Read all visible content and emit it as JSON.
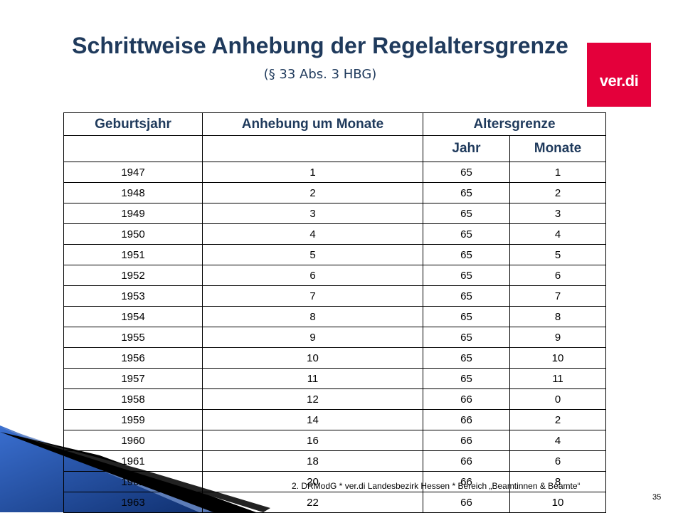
{
  "title": "Schrittweise Anhebung der Regelaltersgrenze",
  "subtitle": "(§ 33 Abs. 3 HBG)",
  "logo_text": "ver.di",
  "colors": {
    "title": "#1f3a5c",
    "logo_bg": "#e4003b",
    "deco_blue": "#1a4a9c"
  },
  "table": {
    "headers": {
      "birth_year": "Geburtsjahr",
      "increase": "Anhebung um Monate",
      "age_limit": "Altersgrenze",
      "year": "Jahr",
      "months": "Monate"
    },
    "rows": [
      [
        "1947",
        "1",
        "65",
        "1"
      ],
      [
        "1948",
        "2",
        "65",
        "2"
      ],
      [
        "1949",
        "3",
        "65",
        "3"
      ],
      [
        "1950",
        "4",
        "65",
        "4"
      ],
      [
        "1951",
        "5",
        "65",
        "5"
      ],
      [
        "1952",
        "6",
        "65",
        "6"
      ],
      [
        "1953",
        "7",
        "65",
        "7"
      ],
      [
        "1954",
        "8",
        "65",
        "8"
      ],
      [
        "1955",
        "9",
        "65",
        "9"
      ],
      [
        "1956",
        "10",
        "65",
        "10"
      ],
      [
        "1957",
        "11",
        "65",
        "11"
      ],
      [
        "1958",
        "12",
        "66",
        "0"
      ],
      [
        "1959",
        "14",
        "66",
        "2"
      ],
      [
        "1960",
        "16",
        "66",
        "4"
      ],
      [
        "1961",
        "18",
        "66",
        "6"
      ],
      [
        "1962",
        "20",
        "66",
        "8"
      ],
      [
        "1963",
        "22",
        "66",
        "10"
      ]
    ]
  },
  "footer": "2. DRModG  *  ver.di Landesbezirk Hessen *   Bereich „Beamtinnen & Beamte“",
  "page_number": "35"
}
